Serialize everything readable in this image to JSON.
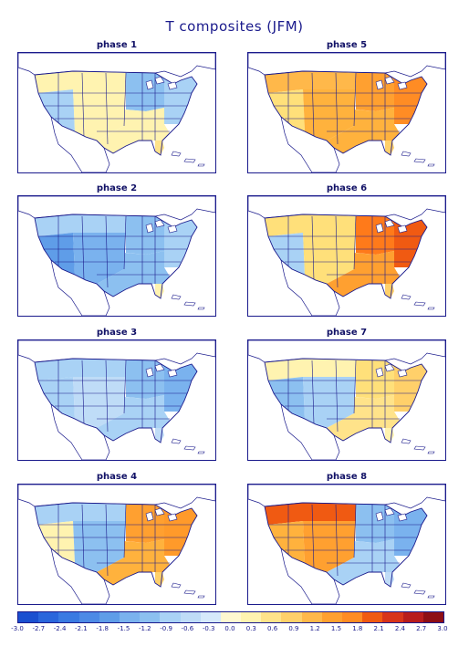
{
  "title": "T composites (JFM)",
  "panels": [
    {
      "label": "phase 1",
      "regions": {
        "west": "#a9d2f5",
        "plains": "#fff3b0",
        "midwest": "#8cc0f0",
        "east": "#a9d2f5",
        "south": "#fff3b0",
        "florida": "#ffe38a",
        "north": "#fff3b0"
      }
    },
    {
      "label": "phase 5",
      "regions": {
        "west": "#ffe07a",
        "plains": "#ffb23d",
        "midwest": "#ffa030",
        "east": "#ff8c24",
        "south": "#ffb23d",
        "florida": "#ffd06a",
        "north": "#ffb84a"
      }
    },
    {
      "label": "phase 2",
      "regions": {
        "west": "#5f9de8",
        "plains": "#7ab2ee",
        "midwest": "#8cc0f0",
        "east": "#a9d2f5",
        "south": "#8cc0f0",
        "florida": "#fff3b0",
        "north": "#a9d2f5"
      }
    },
    {
      "label": "phase 6",
      "regions": {
        "west": "#a9d2f5",
        "plains": "#ffe07a",
        "midwest": "#ff7a1a",
        "east": "#f05a12",
        "south": "#ffa030",
        "florida": "#ffd06a",
        "north": "#ffe07a"
      }
    },
    {
      "label": "phase 3",
      "regions": {
        "west": "#a9d2f5",
        "plains": "#bfdcf7",
        "midwest": "#8cc0f0",
        "east": "#7ab2ee",
        "south": "#a9d2f5",
        "florida": "#bfdcf7",
        "north": "#a9d2f5"
      }
    },
    {
      "label": "phase 7",
      "regions": {
        "west": "#8cc0f0",
        "plains": "#a9d2f5",
        "midwest": "#ffe07a",
        "east": "#ffd06a",
        "south": "#ffe38a",
        "florida": "#fff3b0",
        "north": "#fff3b0"
      }
    },
    {
      "label": "phase 4",
      "regions": {
        "west": "#fff3b0",
        "plains": "#8cc0f0",
        "midwest": "#ffa030",
        "east": "#ff9a2a",
        "south": "#ffb23d",
        "florida": "#ffd06a",
        "north": "#a9d2f5"
      }
    },
    {
      "label": "phase 8",
      "regions": {
        "west": "#ffb23d",
        "plains": "#ffa030",
        "midwest": "#8cc0f0",
        "east": "#7ab2ee",
        "south": "#a9d2f5",
        "florida": "#bfdcf7",
        "north": "#f05a12"
      }
    }
  ],
  "colorbar": {
    "colors": [
      "#1a4fd0",
      "#2a66dc",
      "#3a7ae2",
      "#4d8ae6",
      "#5f9de8",
      "#7ab2ee",
      "#8cc0f0",
      "#a9d2f5",
      "#bfdcf7",
      "#d6e9fb",
      "#fff8d0",
      "#fff3b0",
      "#ffe38a",
      "#ffd06a",
      "#ffb84a",
      "#ffa030",
      "#ff8c24",
      "#f05a12",
      "#d8341a",
      "#b81c1c",
      "#8e0e14"
    ],
    "ticks": [
      "-3.0",
      "-2.7",
      "-2.4",
      "-2.1",
      "-1.8",
      "-1.5",
      "-1.2",
      "-0.9",
      "-0.6",
      "-0.3",
      "0.0",
      "0.3",
      "0.6",
      "0.9",
      "1.2",
      "1.5",
      "1.8",
      "2.1",
      "2.4",
      "2.7",
      "3.0"
    ]
  }
}
